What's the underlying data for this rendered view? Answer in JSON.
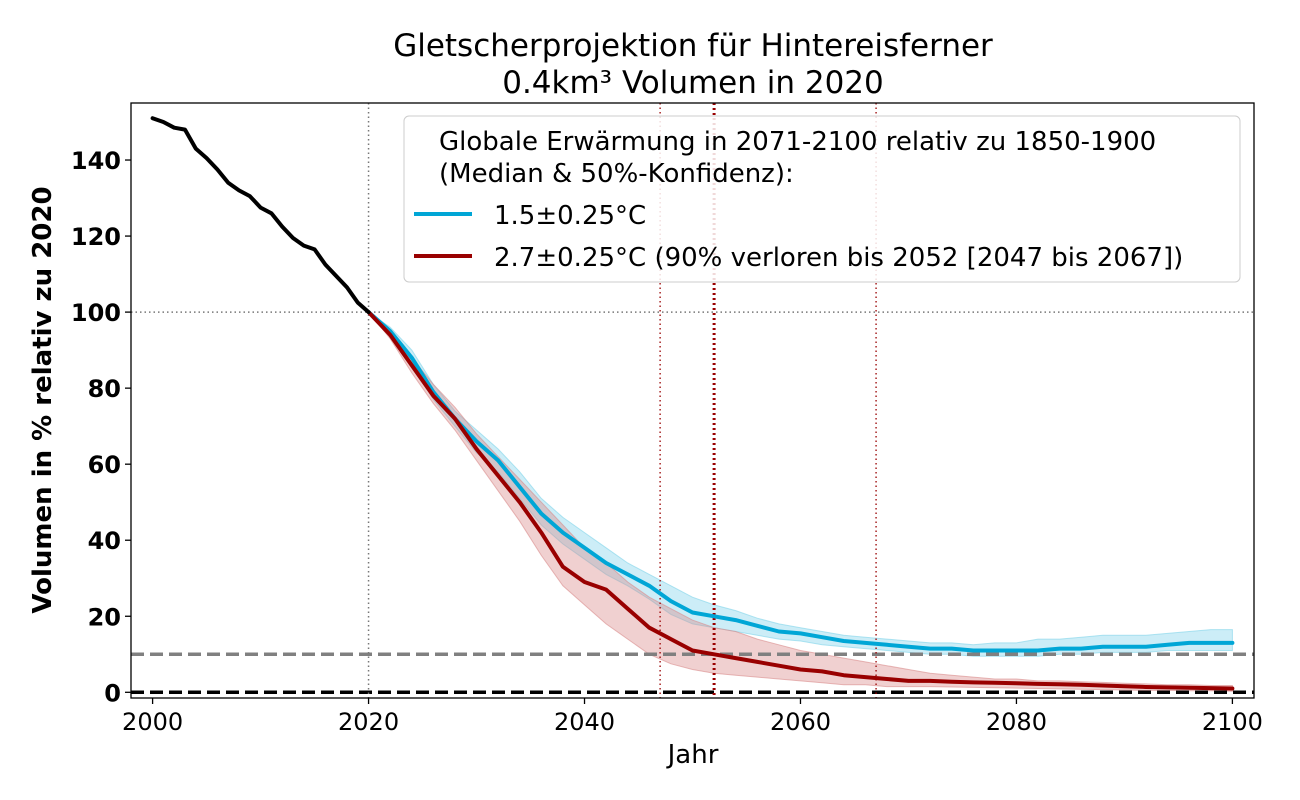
{
  "colors": {
    "historical": "#000000",
    "scenario_15": "#00a6d6",
    "scenario_27": "#990000",
    "band_15": "#7fd3ea",
    "band_27": "#d98a8a",
    "threshold": "#808080",
    "zero": "#000000"
  },
  "chart_data": {
    "type": "line",
    "title": [
      "Gletscherprojektion für Hintereisferner",
      "0.4km³ Volumen in 2020"
    ],
    "xlabel": "Jahr",
    "ylabel": "Volumen in % relativ zu 2020",
    "xlim": [
      1998,
      2102
    ],
    "ylim": [
      -1.5,
      155
    ],
    "xticks": [
      2000,
      2020,
      2040,
      2060,
      2080,
      2100
    ],
    "yticks": [
      0,
      20,
      40,
      60,
      80,
      100,
      120,
      140
    ],
    "grid": false,
    "legend": {
      "placement": "top-right",
      "heading": [
        "Globale Erwärmung in 2071-2100 relativ zu 1850-1900",
        "(Median & 50%-Konfidenz):"
      ]
    },
    "reference_lines": {
      "horizontal": [
        {
          "y": 100,
          "style": "dotted"
        },
        {
          "y": 10,
          "style": "dashed"
        },
        {
          "y": 0,
          "style": "dashed"
        }
      ],
      "vertical": [
        {
          "x": 2020,
          "style": "dotted"
        },
        {
          "x": 2047,
          "style": "dotted"
        },
        {
          "x": 2052,
          "style": "dotted-bold"
        },
        {
          "x": 2067,
          "style": "dotted"
        }
      ]
    },
    "historical": {
      "x": [
        2000,
        2001,
        2002,
        2003,
        2004,
        2005,
        2006,
        2007,
        2008,
        2009,
        2010,
        2011,
        2012,
        2013,
        2014,
        2015,
        2016,
        2017,
        2018,
        2019,
        2020
      ],
      "y": [
        151,
        150,
        148.5,
        148,
        143,
        140.5,
        137.5,
        134,
        132,
        130.5,
        127.5,
        126,
        122.5,
        119.5,
        117.5,
        116.5,
        112.5,
        109.5,
        106.5,
        102.5,
        100
      ]
    },
    "series": [
      {
        "name": "1.5±0.25°C",
        "x": [
          2020,
          2022,
          2024,
          2026,
          2028,
          2030,
          2032,
          2034,
          2036,
          2038,
          2040,
          2042,
          2044,
          2046,
          2048,
          2050,
          2052,
          2054,
          2056,
          2058,
          2060,
          2062,
          2064,
          2066,
          2068,
          2070,
          2072,
          2074,
          2076,
          2078,
          2080,
          2082,
          2084,
          2086,
          2088,
          2090,
          2092,
          2094,
          2096,
          2098,
          2100
        ],
        "y": [
          100,
          95,
          88,
          79,
          72,
          66,
          61,
          54,
          47,
          42,
          38,
          34,
          31,
          28,
          24,
          21,
          20,
          19,
          17.5,
          16,
          15.5,
          14.5,
          13.5,
          13,
          12.5,
          12,
          11.5,
          11.5,
          11,
          11,
          11,
          11,
          11.5,
          11.5,
          12,
          12,
          12,
          12.5,
          13,
          13,
          13
        ],
        "lower": [
          100,
          94,
          86,
          77,
          70,
          63,
          58,
          51,
          44,
          39,
          35,
          31,
          28,
          24.5,
          20.5,
          18,
          17,
          16,
          15,
          14,
          13.5,
          12.5,
          12,
          11.5,
          11,
          10.5,
          10,
          10,
          9.5,
          9.5,
          9.5,
          9.5,
          10,
          10,
          10.5,
          10.5,
          10.5,
          11,
          11,
          11,
          11
        ],
        "upper": [
          100,
          96,
          90,
          81,
          74,
          69,
          64,
          58,
          51,
          46,
          42,
          38,
          34,
          31,
          28,
          25,
          23,
          21.5,
          19.5,
          18,
          17,
          16,
          15,
          14.5,
          14,
          13.5,
          13,
          13,
          12.5,
          13,
          13,
          14,
          14,
          14.5,
          15,
          15,
          15,
          15.5,
          16,
          16.5,
          16.5
        ]
      },
      {
        "name": "2.7±0.25°C (90% verloren bis 2052 [2047 bis 2067])",
        "x": [
          2020,
          2022,
          2024,
          2026,
          2028,
          2030,
          2032,
          2034,
          2036,
          2038,
          2040,
          2042,
          2044,
          2046,
          2048,
          2050,
          2052,
          2054,
          2056,
          2058,
          2060,
          2062,
          2064,
          2066,
          2068,
          2070,
          2072,
          2074,
          2076,
          2078,
          2080,
          2082,
          2084,
          2086,
          2088,
          2090,
          2092,
          2094,
          2096,
          2098,
          2100
        ],
        "y": [
          100,
          94,
          86,
          78,
          72,
          64,
          57,
          50,
          42,
          33,
          29,
          27,
          22,
          17,
          14,
          11,
          10,
          9,
          8,
          7,
          6,
          5.5,
          4.5,
          4,
          3.5,
          3,
          3,
          2.8,
          2.6,
          2.5,
          2.4,
          2.2,
          2.1,
          2,
          1.8,
          1.6,
          1.4,
          1.3,
          1.2,
          1.1,
          1
        ],
        "lower": [
          100,
          93,
          84,
          76,
          69,
          61,
          53,
          45,
          36,
          28,
          23,
          18,
          14,
          10,
          7.5,
          6,
          5,
          4.5,
          4,
          3.5,
          3,
          2.5,
          2,
          2,
          1.5,
          1.5,
          1.5,
          1.4,
          1.3,
          1.2,
          1.1,
          1,
          0.9,
          0.8,
          0.7,
          0.6,
          0.5,
          0.5,
          0.4,
          0.4,
          0.3
        ],
        "upper": [
          100,
          95,
          88,
          81,
          75,
          68,
          62,
          56,
          50,
          44,
          38,
          34,
          29,
          25,
          22,
          19,
          17,
          16,
          14,
          12.5,
          11,
          10,
          9,
          8,
          7,
          6,
          5,
          4.5,
          4,
          3.5,
          3.5,
          3,
          3,
          2.8,
          2.6,
          2.4,
          2.2,
          2,
          2,
          1.8,
          1.8
        ]
      }
    ]
  }
}
